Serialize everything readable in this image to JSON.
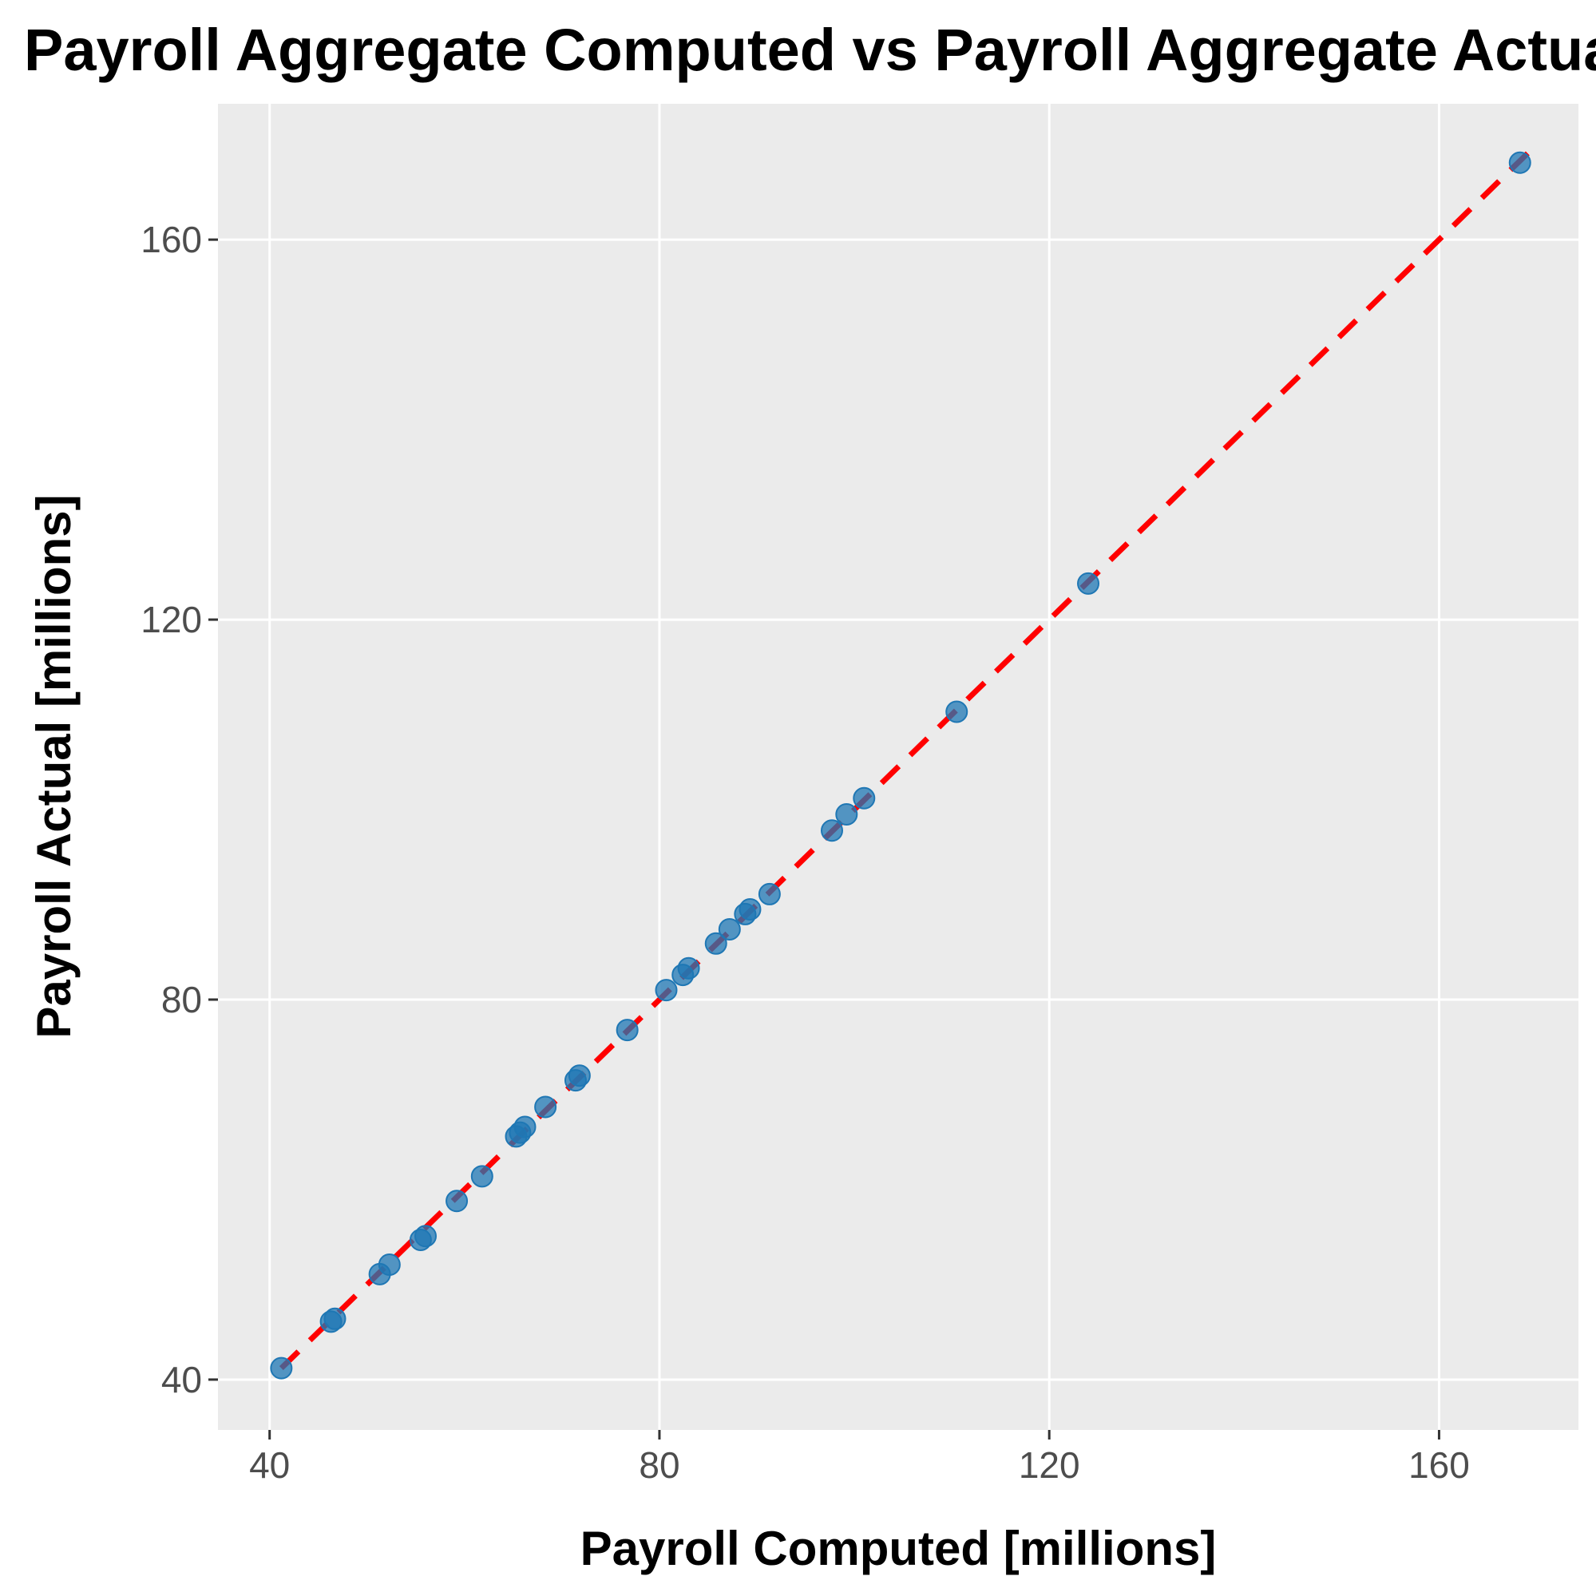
{
  "chart_data": {
    "type": "scatter",
    "title": "Payroll Aggregate Computed vs Payroll Aggregate Actual",
    "xlabel": "Payroll Computed [millions]",
    "ylabel": "Payroll Actual [millions]",
    "xlim": [
      34.7,
      174.3
    ],
    "ylim": [
      34.7,
      174.3
    ],
    "xticks": [
      40,
      80,
      120,
      160
    ],
    "yticks": [
      40,
      80,
      120,
      160
    ],
    "grid": true,
    "point_color": "#1f77b4",
    "reference_line": {
      "style": "dashed",
      "color": "#ff0000",
      "from": [
        41.2,
        41.2
      ],
      "to": [
        169.2,
        169.2
      ]
    },
    "points": [
      {
        "x": 41.2,
        "y": 41.2
      },
      {
        "x": 46.3,
        "y": 46.1
      },
      {
        "x": 46.7,
        "y": 46.4
      },
      {
        "x": 51.3,
        "y": 51.1
      },
      {
        "x": 52.3,
        "y": 52.1
      },
      {
        "x": 55.5,
        "y": 54.7
      },
      {
        "x": 56.0,
        "y": 55.1
      },
      {
        "x": 59.2,
        "y": 58.8
      },
      {
        "x": 61.8,
        "y": 61.4
      },
      {
        "x": 65.3,
        "y": 65.6
      },
      {
        "x": 65.7,
        "y": 66.0
      },
      {
        "x": 66.2,
        "y": 66.6
      },
      {
        "x": 68.3,
        "y": 68.7
      },
      {
        "x": 71.4,
        "y": 71.5
      },
      {
        "x": 71.8,
        "y": 72.0
      },
      {
        "x": 76.7,
        "y": 76.8
      },
      {
        "x": 80.7,
        "y": 81.0
      },
      {
        "x": 82.4,
        "y": 82.6
      },
      {
        "x": 83.0,
        "y": 83.3
      },
      {
        "x": 85.8,
        "y": 85.9
      },
      {
        "x": 87.2,
        "y": 87.4
      },
      {
        "x": 88.8,
        "y": 89.0
      },
      {
        "x": 89.3,
        "y": 89.5
      },
      {
        "x": 91.3,
        "y": 91.1
      },
      {
        "x": 97.7,
        "y": 97.8
      },
      {
        "x": 99.2,
        "y": 99.5
      },
      {
        "x": 101.0,
        "y": 101.2
      },
      {
        "x": 110.5,
        "y": 110.3
      },
      {
        "x": 124.0,
        "y": 123.8
      },
      {
        "x": 168.3,
        "y": 168.1
      }
    ]
  }
}
